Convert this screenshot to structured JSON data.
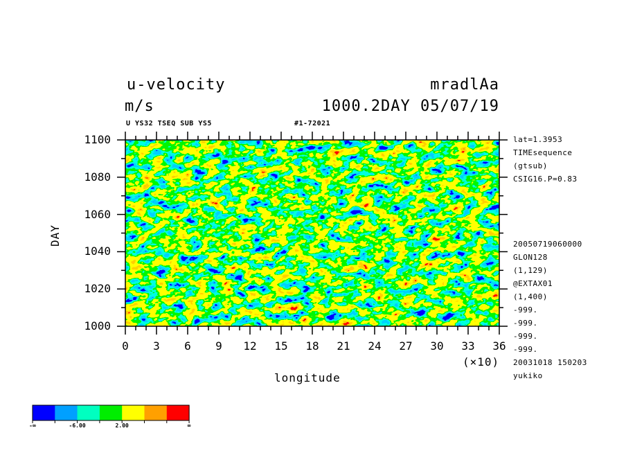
{
  "header": {
    "left_title": "u-velocity",
    "left_units": "m/s",
    "right_title": "mradlAa",
    "right_sub": "1000.2DAY 05/07/19",
    "sub_left": "U YS32 TSEQ SUB YS5",
    "sub_mid": "#1-72021"
  },
  "side_info": {
    "top": [
      "lat=1.3953",
      "TIMEsequence",
      "(gtsub)",
      "CSIG16.P=0.83"
    ],
    "bottom": [
      "20050719060000",
      "GLON128",
      "(1,129)",
      "@EXTAX01",
      "(1,400)",
      "-999.",
      "-999.",
      "-999.",
      "-999.",
      "20031018 150203",
      "yukiko"
    ]
  },
  "chart_data": {
    "type": "heatmap",
    "title": "u-velocity",
    "xlabel": "longitude",
    "ylabel": "DAY",
    "x_multiplier": "(×10)",
    "xlim": [
      0,
      36
    ],
    "ylim": [
      1000,
      1100
    ],
    "x_ticks": [
      "0",
      "3",
      "6",
      "9",
      "12",
      "15",
      "18",
      "21",
      "24",
      "27",
      "30",
      "33",
      "36"
    ],
    "y_ticks": [
      "1000",
      "1020",
      "1040",
      "1060",
      "1080",
      "1100"
    ],
    "colorbar": {
      "colors": [
        "#0000ff",
        "#00a0ff",
        "#00ffc0",
        "#00ee00",
        "#ffff00",
        "#ffa000",
        "#ff0000"
      ],
      "labels": [
        "-∞",
        "-6.00",
        "2.00",
        "∞"
      ]
    }
  }
}
